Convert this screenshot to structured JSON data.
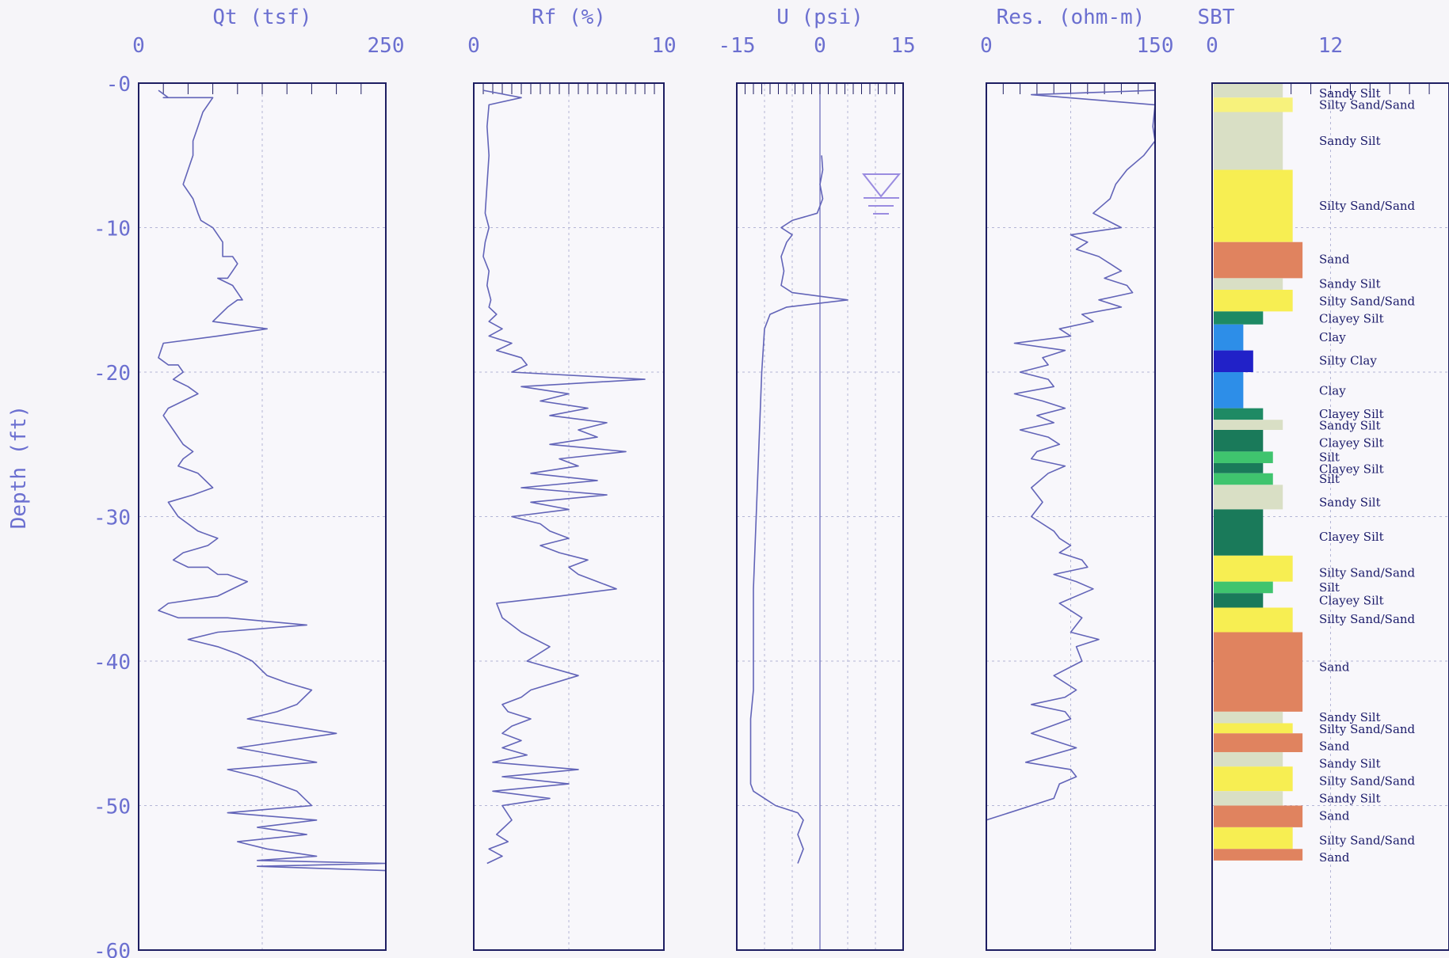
{
  "depth_label": "Depth (ft)",
  "depth_ticks": [
    "-0",
    "-10",
    "-20",
    "-30",
    "-40",
    "-50",
    "-60"
  ],
  "colors": {
    "axis": "#6b6fd0",
    "frame": "#1e1e62",
    "trace": "#6264b8",
    "grid": "#b4b6d6",
    "water_symbol": "#9a8ce0"
  },
  "chart_data": [
    {
      "type": "line",
      "title": "Qt (tsf)",
      "x_ticks": [
        "0",
        "250"
      ],
      "xlim": [
        0,
        250
      ],
      "ylim": [
        0,
        -60
      ],
      "series": [
        {
          "x": [
            20,
            30,
            25,
            75,
            65,
            60,
            55,
            55,
            50,
            45,
            55,
            60,
            63,
            75,
            80,
            85,
            85,
            95,
            100,
            95,
            90,
            80,
            95,
            100,
            105,
            100,
            90,
            75,
            130,
            80,
            25,
            20,
            30,
            40,
            45,
            35,
            50,
            60,
            45,
            30,
            25,
            35,
            45,
            55,
            45,
            40,
            60,
            75,
            55,
            30,
            40,
            60,
            80,
            70,
            45,
            35,
            50,
            70,
            80,
            90,
            110,
            80,
            30,
            20,
            40,
            90,
            170,
            80,
            50,
            80,
            100,
            115,
            130,
            150,
            175,
            160,
            140,
            110,
            200,
            100,
            180,
            90,
            120,
            140,
            160,
            175,
            90,
            180,
            120,
            170,
            100,
            130,
            180,
            120,
            250,
            120,
            250
          ],
          "y": [
            -0.5,
            -1,
            -1,
            -1,
            -2,
            -3,
            -4,
            -5,
            -6,
            -7,
            -8,
            -9,
            -9.5,
            -10,
            -10.5,
            -11,
            -12,
            -12,
            -12.5,
            -13,
            -13.5,
            -13.5,
            -14,
            -14.5,
            -15,
            -15,
            -15.5,
            -16.5,
            -17,
            -17.5,
            -18,
            -19,
            -19.5,
            -19.5,
            -20,
            -20.5,
            -21,
            -21.5,
            -22,
            -22.5,
            -23,
            -24,
            -25,
            -25.5,
            -26,
            -26.5,
            -27,
            -28,
            -28.5,
            -29,
            -30,
            -31,
            -31.5,
            -32,
            -32.5,
            -33,
            -33.5,
            -33.5,
            -34,
            -34,
            -34.5,
            -35.5,
            -36,
            -36.5,
            -37,
            -37,
            -37.5,
            -38,
            -38.5,
            -39,
            -39.5,
            -40,
            -41,
            -41.5,
            -42,
            -43,
            -43.5,
            -44,
            -45,
            -46,
            -47,
            -47.5,
            -48,
            -48.5,
            -49,
            -50,
            -50.5,
            -51,
            -51.5,
            -52,
            -52.5,
            -53,
            -53.5,
            -53.8,
            -54,
            -54.2,
            -54.5
          ]
        }
      ]
    },
    {
      "type": "line",
      "title": "Rf (%)",
      "x_ticks": [
        "0",
        "10"
      ],
      "xlim": [
        0,
        10
      ],
      "ylim": [
        0,
        -60
      ],
      "series": [
        {
          "x": [
            0.5,
            2.5,
            0.8,
            0.7,
            0.8,
            0.7,
            0.6,
            0.8,
            0.6,
            0.5,
            0.8,
            0.7,
            0.9,
            0.8,
            1.2,
            0.8,
            1.5,
            0.8,
            2.0,
            1.2,
            2.5,
            2.8,
            2.0,
            9.0,
            2.5,
            5.0,
            3.5,
            6.0,
            4.0,
            7.0,
            5.5,
            6.5,
            4.0,
            8.0,
            4.5,
            5.5,
            3.0,
            6.5,
            2.5,
            7.0,
            3.0,
            5.0,
            2.0,
            3.5,
            4.0,
            5.0,
            3.5,
            4.5,
            6.0,
            5.0,
            5.5,
            6.5,
            7.5,
            4.5,
            1.2,
            1.5,
            2.5,
            4.0,
            2.8,
            5.5,
            3.0,
            2.5,
            1.5,
            1.8,
            3.0,
            2.0,
            1.5,
            2.5,
            1.5,
            2.8,
            1.0,
            5.5,
            1.5,
            5.0,
            1.0,
            4.0,
            1.5,
            2.0,
            1.2,
            1.8,
            0.8,
            1.5,
            0.7
          ],
          "y": [
            -0.5,
            -1,
            -1.5,
            -3,
            -5,
            -7,
            -9,
            -10,
            -11,
            -12,
            -13,
            -14,
            -15,
            -15.5,
            -16,
            -16.5,
            -17,
            -17.5,
            -18,
            -18.5,
            -19,
            -19.5,
            -20,
            -20.5,
            -21,
            -21.5,
            -22,
            -22.5,
            -23,
            -23.5,
            -24,
            -24.5,
            -25,
            -25.5,
            -26,
            -26.5,
            -27,
            -27.5,
            -28,
            -28.5,
            -29,
            -29.5,
            -30,
            -30.5,
            -31,
            -31.5,
            -32,
            -32.5,
            -33,
            -33.5,
            -34,
            -34.5,
            -35,
            -35.5,
            -36,
            -37,
            -38,
            -39,
            -40,
            -41,
            -42,
            -42.5,
            -43,
            -43.5,
            -44,
            -44.5,
            -45,
            -45.5,
            -46,
            -46.5,
            -47,
            -47.5,
            -48,
            -48.5,
            -49,
            -49.5,
            -50,
            -51,
            -52,
            -52.5,
            -53,
            -53.5,
            -54
          ]
        }
      ]
    },
    {
      "type": "line",
      "title": "U (psi)",
      "x_ticks": [
        "-15",
        "0",
        "15"
      ],
      "xlim": [
        -15,
        15
      ],
      "ylim": [
        0,
        -60
      ],
      "series": [
        {
          "x": [
            0.3,
            0.5,
            0,
            0.5,
            -0.5,
            -5,
            -7,
            -5,
            -6,
            -7,
            -6.5,
            -7,
            -5,
            5,
            -6,
            -9,
            -10,
            -10.5,
            -11,
            -11.5,
            -12,
            -12,
            -12,
            -12.5,
            -12.5,
            -12.5,
            -12.5,
            -12.5,
            -12.5,
            -12,
            -10,
            -8,
            -4,
            -3,
            -4,
            -3,
            -4
          ],
          "y": [
            -5,
            -6,
            -7,
            -8,
            -9,
            -9.5,
            -10,
            -10.5,
            -11,
            -12,
            -13,
            -14,
            -14.5,
            -15,
            -15.5,
            -16,
            -17,
            -20,
            -25,
            -30,
            -35,
            -40,
            -42,
            -44,
            -46,
            -47,
            -47.5,
            -48,
            -48.5,
            -49,
            -49.5,
            -50,
            -50.5,
            -51,
            -52,
            -53,
            -54
          ]
        }
      ]
    },
    {
      "type": "line",
      "title": "Res. (ohm-m)",
      "x_ticks": [
        "0",
        "150"
      ],
      "xlim": [
        0,
        150
      ],
      "ylim": [
        0,
        -60
      ],
      "series": [
        {
          "x": [
            150,
            40,
            150,
            148,
            150,
            140,
            125,
            115,
            110,
            95,
            120,
            75,
            90,
            80,
            100,
            110,
            120,
            105,
            125,
            130,
            100,
            120,
            85,
            95,
            65,
            75,
            25,
            70,
            50,
            55,
            30,
            55,
            60,
            25,
            50,
            70,
            45,
            60,
            30,
            55,
            65,
            45,
            40,
            70,
            55,
            40,
            50,
            40,
            60,
            65,
            75,
            65,
            85,
            90,
            60,
            80,
            95,
            65,
            85,
            75,
            100,
            80,
            85,
            60,
            80,
            70,
            40,
            70,
            75,
            40,
            80,
            35,
            75,
            80,
            65,
            60,
            0
          ],
          "y": [
            -0.5,
            -0.8,
            -1.5,
            -3,
            -4,
            -5,
            -6,
            -7,
            -8,
            -9,
            -10,
            -10.5,
            -11,
            -11.5,
            -12,
            -12.5,
            -13,
            -13.5,
            -14,
            -14.5,
            -15,
            -15.5,
            -16,
            -16.5,
            -17,
            -17.5,
            -18,
            -18.5,
            -19,
            -19.5,
            -20,
            -20.5,
            -21,
            -21.5,
            -22,
            -22.5,
            -23,
            -23.5,
            -24,
            -24.5,
            -25,
            -25.5,
            -26,
            -26.5,
            -27,
            -28,
            -29,
            -30,
            -31,
            -31.5,
            -32,
            -32.5,
            -33,
            -33.5,
            -34,
            -34.5,
            -35,
            -36,
            -37,
            -38,
            -38.5,
            -39,
            -40,
            -41,
            -42,
            -42.5,
            -43,
            -43.5,
            -44,
            -45,
            -46,
            -47,
            -47.5,
            -48,
            -48.5,
            -49.5,
            -51
          ]
        }
      ]
    },
    {
      "type": "bar",
      "title": "SBT",
      "x_ticks": [
        "0",
        "12"
      ],
      "xlim": [
        0,
        12
      ],
      "ylim": [
        0,
        -60
      ],
      "layers": [
        {
          "label": "Sandy Silt",
          "top": 0,
          "bottom": -1,
          "value": 7,
          "color": "#d9dfc5"
        },
        {
          "label": "Silty Sand/Sand",
          "top": -1,
          "bottom": -2,
          "value": 8,
          "color": "#f7f27c"
        },
        {
          "label": "Sandy Silt",
          "top": -2,
          "bottom": -6,
          "value": 7,
          "color": "#d9dfc5"
        },
        {
          "label": "Silty Sand/Sand",
          "top": -6,
          "bottom": -11,
          "value": 8,
          "color": "#f7ee52"
        },
        {
          "label": "Sand",
          "top": -11,
          "bottom": -13.5,
          "value": 9,
          "color": "#e0835f"
        },
        {
          "label": "Sandy Silt",
          "top": -13.5,
          "bottom": -14.3,
          "value": 7,
          "color": "#d9dfc5"
        },
        {
          "label": "Silty Sand/Sand",
          "top": -14.3,
          "bottom": -15.8,
          "value": 8,
          "color": "#f7ee52"
        },
        {
          "label": "Clayey Silt",
          "top": -15.8,
          "bottom": -16.7,
          "value": 5,
          "color": "#1e8a64"
        },
        {
          "label": "Clay",
          "top": -16.7,
          "bottom": -18.5,
          "value": 3,
          "color": "#2d8ee8"
        },
        {
          "label": "Silty Clay",
          "top": -18.5,
          "bottom": -20,
          "value": 4,
          "color": "#2121c8"
        },
        {
          "label": "Clay",
          "top": -20,
          "bottom": -22.5,
          "value": 3,
          "color": "#2d8ee8"
        },
        {
          "label": "Clayey Silt",
          "top": -22.5,
          "bottom": -23.3,
          "value": 5,
          "color": "#1e8a64"
        },
        {
          "label": "Sandy Silt",
          "top": -23.3,
          "bottom": -24,
          "value": 7,
          "color": "#d9dfc5"
        },
        {
          "label": "Clayey Silt",
          "top": -24,
          "bottom": -25.5,
          "value": 5,
          "color": "#1a7a5a"
        },
        {
          "label": "Silt",
          "top": -25.5,
          "bottom": -26.3,
          "value": 6,
          "color": "#3fc46e"
        },
        {
          "label": "Clayey Silt",
          "top": -26.3,
          "bottom": -27,
          "value": 5,
          "color": "#1a7a5a"
        },
        {
          "label": "Silt",
          "top": -27,
          "bottom": -27.8,
          "value": 6,
          "color": "#3fc46e"
        },
        {
          "label": "Sandy Silt",
          "top": -27.8,
          "bottom": -29.5,
          "value": 7,
          "color": "#d9dfc5"
        },
        {
          "label": "Clayey Silt",
          "top": -29.5,
          "bottom": -32.7,
          "value": 5,
          "color": "#1a7a5a"
        },
        {
          "label": "Silty Sand/Sand",
          "top": -32.7,
          "bottom": -34.5,
          "value": 8,
          "color": "#f7ee52"
        },
        {
          "label": "Silt",
          "top": -34.5,
          "bottom": -35.3,
          "value": 6,
          "color": "#3fc46e"
        },
        {
          "label": "Clayey Silt",
          "top": -35.3,
          "bottom": -36.3,
          "value": 5,
          "color": "#1a7a5a"
        },
        {
          "label": "Silty Sand/Sand",
          "top": -36.3,
          "bottom": -38,
          "value": 8,
          "color": "#f7ee52"
        },
        {
          "label": "Sand",
          "top": -38,
          "bottom": -43.5,
          "value": 9,
          "color": "#e0835f"
        },
        {
          "label": "Sandy Silt",
          "top": -43.5,
          "bottom": -44.3,
          "value": 7,
          "color": "#d9dfc5"
        },
        {
          "label": "Silty Sand/Sand",
          "top": -44.3,
          "bottom": -45,
          "value": 8,
          "color": "#f7ee52"
        },
        {
          "label": "Sand",
          "top": -45,
          "bottom": -46.3,
          "value": 9,
          "color": "#e0835f"
        },
        {
          "label": "Sandy Silt",
          "top": -46.3,
          "bottom": -47.3,
          "value": 7,
          "color": "#d9dfc5"
        },
        {
          "label": "Silty Sand/Sand",
          "top": -47.3,
          "bottom": -49,
          "value": 8,
          "color": "#f7ee52"
        },
        {
          "label": "Sandy Silt",
          "top": -49,
          "bottom": -50,
          "value": 7,
          "color": "#d9dfc5"
        },
        {
          "label": "Sand",
          "top": -50,
          "bottom": -51.5,
          "value": 9,
          "color": "#e0835f"
        },
        {
          "label": "Silty Sand/Sand",
          "top": -51.5,
          "bottom": -53,
          "value": 8,
          "color": "#f7ee52"
        },
        {
          "label": "Sand",
          "top": -53,
          "bottom": -53.8,
          "value": 9,
          "color": "#e0835f"
        }
      ],
      "labels": [
        {
          "text": "Sandy Silt",
          "depth": -0.7
        },
        {
          "text": "Silty Sand/Sand",
          "depth": -1.5
        },
        {
          "text": "Sandy Silt",
          "depth": -4
        },
        {
          "text": "Silty Sand/Sand",
          "depth": -8.5
        },
        {
          "text": "Sand",
          "depth": -12.2
        },
        {
          "text": "Sandy Silt",
          "depth": -13.9
        },
        {
          "text": "Silty Sand/Sand",
          "depth": -15.1
        },
        {
          "text": "Clayey Silt",
          "depth": -16.3
        },
        {
          "text": "Clay",
          "depth": -17.6
        },
        {
          "text": "Silty Clay",
          "depth": -19.2
        },
        {
          "text": "Clay",
          "depth": -21.3
        },
        {
          "text": "Clayey Silt",
          "depth": -22.9
        },
        {
          "text": "Sandy Silt",
          "depth": -23.7
        },
        {
          "text": "Clayey Silt",
          "depth": -24.9
        },
        {
          "text": "Silt",
          "depth": -25.9
        },
        {
          "text": "Clayey Silt",
          "depth": -26.7
        },
        {
          "text": "Silt",
          "depth": -27.4
        },
        {
          "text": "Sandy Silt",
          "depth": -29
        },
        {
          "text": "Clayey Silt",
          "depth": -31.4
        },
        {
          "text": "Silty Sand/Sand",
          "depth": -33.9
        },
        {
          "text": "Silt",
          "depth": -34.9
        },
        {
          "text": "Clayey Silt",
          "depth": -35.8
        },
        {
          "text": "Silty Sand/Sand",
          "depth": -37.1
        },
        {
          "text": "Sand",
          "depth": -40.4
        },
        {
          "text": "Sandy Silt",
          "depth": -43.9
        },
        {
          "text": "Silty Sand/Sand",
          "depth": -44.7
        },
        {
          "text": "Sand",
          "depth": -45.9
        },
        {
          "text": "Sandy Silt",
          "depth": -47.1
        },
        {
          "text": "Silty Sand/Sand",
          "depth": -48.3
        },
        {
          "text": "Sandy Silt",
          "depth": -49.5
        },
        {
          "text": "Sand",
          "depth": -50.7
        },
        {
          "text": "Silty Sand/Sand",
          "depth": -52.4
        },
        {
          "text": "Sand",
          "depth": -53.6
        }
      ]
    }
  ]
}
